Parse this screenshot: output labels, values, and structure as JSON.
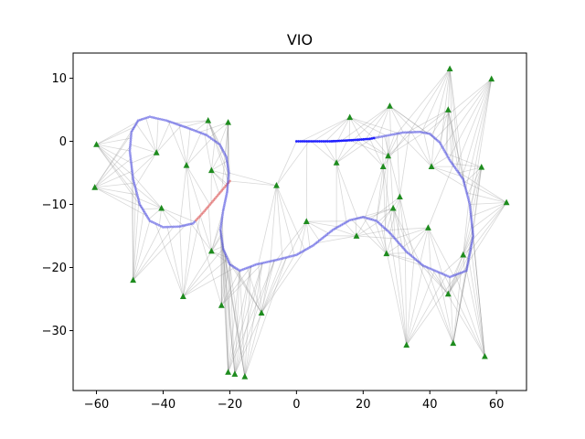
{
  "chart_data": {
    "type": "scatter",
    "title": "VIO",
    "xlabel": "",
    "ylabel": "",
    "xlim": [
      -67,
      69
    ],
    "ylim": [
      -39.5,
      14
    ],
    "xticks": [
      -60,
      -40,
      -20,
      0,
      20,
      40,
      60
    ],
    "yticks": [
      10,
      0,
      -10,
      -20,
      -30
    ],
    "grid": false,
    "colors": {
      "trajectory": "#4a4ae0",
      "trajectory_end": "#0000ff",
      "trajectory_start": "#e06a6a",
      "landmark": "#1e8c1e",
      "ray": "#909090"
    },
    "trajectory": [
      [
        -20,
        -6.3
      ],
      [
        -24,
        -8.8
      ],
      [
        -28,
        -11.3
      ],
      [
        -31,
        -13
      ],
      [
        -35,
        -13.5
      ],
      [
        -40,
        -13.6
      ],
      [
        -44,
        -12.6
      ],
      [
        -47,
        -10
      ],
      [
        -49,
        -6
      ],
      [
        -50,
        -1.5
      ],
      [
        -49.5,
        1.5
      ],
      [
        -47.5,
        3.3
      ],
      [
        -44,
        3.9
      ],
      [
        -39,
        3.3
      ],
      [
        -33,
        2.2
      ],
      [
        -27,
        1
      ],
      [
        -23,
        -0.5
      ],
      [
        -21,
        -2.5
      ],
      [
        -20.3,
        -5
      ],
      [
        -20.8,
        -8
      ],
      [
        -22,
        -11
      ],
      [
        -22.8,
        -14
      ],
      [
        -22,
        -17
      ],
      [
        -20,
        -19.5
      ],
      [
        -17,
        -20.5
      ],
      [
        -12,
        -19.5
      ],
      [
        -6,
        -18.8
      ],
      [
        0,
        -18
      ],
      [
        5,
        -16.5
      ],
      [
        11,
        -14
      ],
      [
        16,
        -12.5
      ],
      [
        20,
        -12
      ],
      [
        24,
        -12.6
      ],
      [
        28,
        -14.5
      ],
      [
        33,
        -17.5
      ],
      [
        38,
        -19.7
      ],
      [
        42,
        -20.6
      ],
      [
        46,
        -21.5
      ],
      [
        51,
        -20.5
      ],
      [
        53,
        -15
      ],
      [
        52,
        -10
      ],
      [
        50,
        -6
      ],
      [
        46,
        -3
      ],
      [
        43,
        -0.2
      ],
      [
        40,
        1.2
      ],
      [
        37,
        1.5
      ],
      [
        32,
        1.4
      ],
      [
        27,
        0.9
      ],
      [
        22,
        0.4
      ],
      [
        17,
        0.2
      ],
      [
        10,
        0
      ],
      [
        5,
        0
      ],
      [
        0,
        0
      ]
    ],
    "landmarks": [
      [
        -60,
        -0.5
      ],
      [
        -60.5,
        -7.3
      ],
      [
        -49,
        -22
      ],
      [
        -42,
        -1.8
      ],
      [
        -40.5,
        -10.6
      ],
      [
        -34,
        -24.6
      ],
      [
        -33,
        -3.8
      ],
      [
        -26.5,
        3.3
      ],
      [
        -25.5,
        -4.6
      ],
      [
        -25.5,
        -17.4
      ],
      [
        -20.5,
        3
      ],
      [
        -22.5,
        -26
      ],
      [
        -20.5,
        -36.6
      ],
      [
        -18.5,
        -36.9
      ],
      [
        -15.5,
        -37.3
      ],
      [
        -10.5,
        -27.2
      ],
      [
        -6,
        -7
      ],
      [
        3,
        -12.7
      ],
      [
        12,
        -3.4
      ],
      [
        16,
        3.8
      ],
      [
        18,
        -15
      ],
      [
        26,
        -4
      ],
      [
        27,
        -17.8
      ],
      [
        27.5,
        -2.3
      ],
      [
        28,
        5.6
      ],
      [
        29,
        -10.6
      ],
      [
        31,
        -8.8
      ],
      [
        33,
        -32.3
      ],
      [
        39.5,
        -13.7
      ],
      [
        40.5,
        -4
      ],
      [
        45.5,
        -24.2
      ],
      [
        45.5,
        5
      ],
      [
        46,
        11.5
      ],
      [
        47,
        -32
      ],
      [
        50,
        -18
      ],
      [
        55.5,
        -4.1
      ],
      [
        56.5,
        -34.1
      ],
      [
        58.5,
        9.9
      ],
      [
        63,
        -9.7
      ]
    ]
  }
}
